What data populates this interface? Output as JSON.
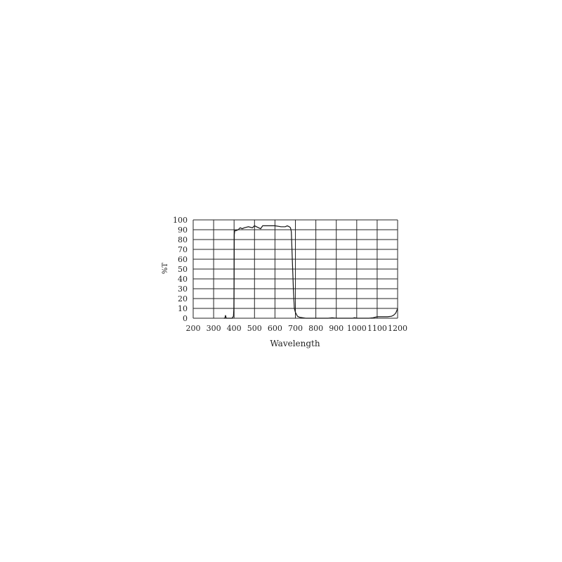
{
  "chart_data": {
    "type": "line",
    "title": "",
    "xlabel": "Wavelength",
    "ylabel": "%T",
    "xlim": [
      200,
      1200
    ],
    "ylim": [
      0,
      100
    ],
    "grid": true,
    "xticks": [
      "200",
      "300",
      "400",
      "500",
      "600",
      "700",
      "800",
      "900",
      "1000",
      "1100",
      "1200"
    ],
    "yticks": [
      "0",
      "10",
      "20",
      "30",
      "40",
      "50",
      "60",
      "70",
      "80",
      "90",
      "100"
    ],
    "line_color": "#111111",
    "series": [
      {
        "x": [
          350,
          355,
          358,
          362,
          390,
          397,
          399,
          400,
          401,
          403,
          410,
          420,
          430,
          440,
          450,
          470,
          490,
          500,
          510,
          520,
          530,
          540,
          560,
          600,
          630,
          650,
          660,
          670,
          676,
          680,
          685,
          690,
          695,
          700,
          710,
          720,
          750,
          800,
          860,
          880,
          900,
          980,
          990,
          1000,
          1060,
          1080,
          1100,
          1150,
          1170,
          1180,
          1190,
          1195,
          1200
        ],
        "y": [
          0,
          0,
          3,
          0,
          0,
          2,
          10,
          40,
          85,
          89,
          89,
          90,
          92,
          91,
          92,
          93,
          92,
          94,
          93,
          92,
          91,
          94,
          94,
          94,
          93,
          93,
          94,
          93,
          92,
          88,
          60,
          30,
          10,
          6,
          2,
          1,
          0,
          0,
          0,
          0.5,
          0,
          0,
          0.5,
          0,
          0,
          0.5,
          1.5,
          1.5,
          2,
          3,
          5,
          7,
          10
        ]
      }
    ]
  }
}
